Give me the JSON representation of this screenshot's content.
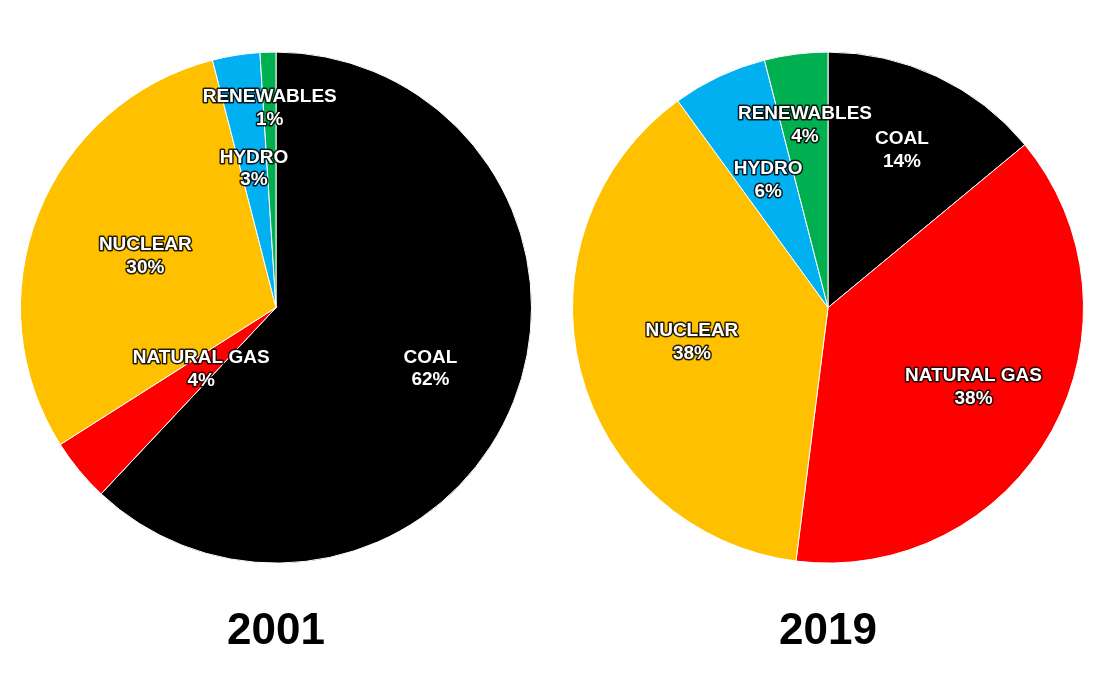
{
  "chart_data": [
    {
      "type": "pie",
      "title": "2001",
      "categories": [
        "COAL",
        "NATURAL GAS",
        "NUCLEAR",
        "HYDRO",
        "RENEWABLES"
      ],
      "values": [
        62,
        4,
        30,
        3,
        1
      ],
      "value_labels": [
        "62%",
        "4%",
        "30%",
        "3%",
        "1%"
      ],
      "colors": [
        "#000000",
        "#ff0000",
        "#ffc000",
        "#00b0f0",
        "#00b050"
      ],
      "data_labels": true
    },
    {
      "type": "pie",
      "title": "2019",
      "categories": [
        "COAL",
        "NATURAL GAS",
        "NUCLEAR",
        "HYDRO",
        "RENEWABLES"
      ],
      "values": [
        14,
        38,
        38,
        6,
        4
      ],
      "value_labels": [
        "14%",
        "38%",
        "38%",
        "6%",
        "4%"
      ],
      "colors": [
        "#000000",
        "#ff0000",
        "#ffc000",
        "#00b0f0",
        "#00b050"
      ],
      "data_labels": true
    }
  ]
}
